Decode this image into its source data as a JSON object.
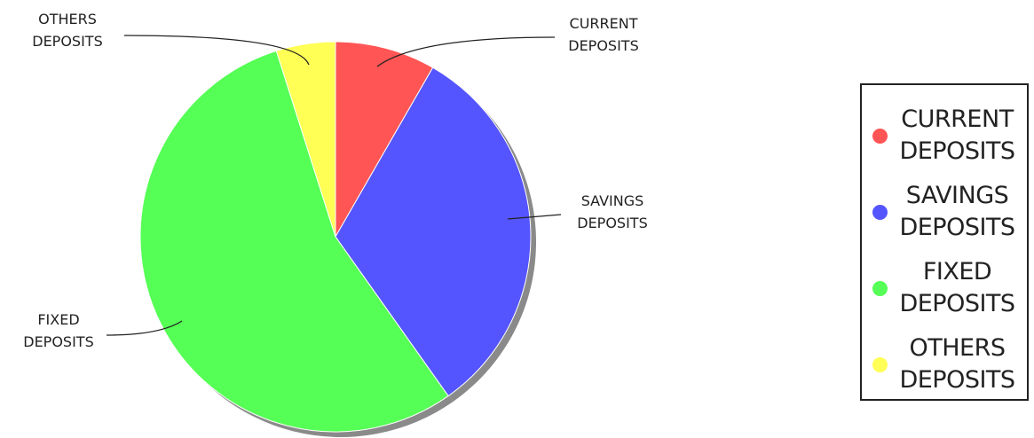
{
  "chart_data": {
    "type": "pie",
    "slices": [
      {
        "label": "CURRENT DEPOSITS",
        "value": 8.3,
        "color": "#ff5555"
      },
      {
        "label": "SAVINGS DEPOSITS",
        "value": 31.9,
        "color": "#5555ff"
      },
      {
        "label": "FIXED DEPOSITS",
        "value": 54.9,
        "color": "#55ff55"
      },
      {
        "label": "OTHERS DEPOSITS",
        "value": 4.9,
        "color": "#ffff55"
      }
    ],
    "start_angle_deg": 0,
    "direction": "clockwise",
    "legend_position": "right"
  },
  "callouts": [
    {
      "line1": "CURRENT",
      "line2": "DEPOSITS"
    },
    {
      "line1": "SAVINGS",
      "line2": "DEPOSITS"
    },
    {
      "line1": "FIXED",
      "line2": "DEPOSITS"
    },
    {
      "line1": "OTHERS",
      "line2": "DEPOSITS"
    }
  ],
  "legend": {
    "items": [
      {
        "label": "CURRENT\nDEPOSITS",
        "color": "#ff5555"
      },
      {
        "label": "SAVINGS\nDEPOSITS",
        "color": "#5555ff"
      },
      {
        "label": "FIXED\nDEPOSITS",
        "color": "#55ff55"
      },
      {
        "label": "OTHERS\nDEPOSITS",
        "color": "#ffff55"
      }
    ]
  }
}
